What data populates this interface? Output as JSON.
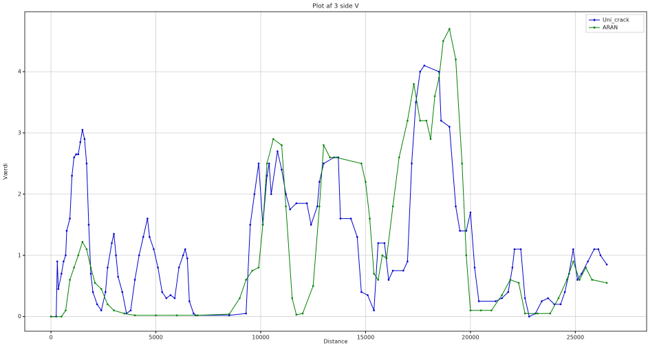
{
  "chart_data": {
    "type": "line",
    "title": "Plot af 3 side V",
    "xlabel": "Distance",
    "ylabel": "Værdi",
    "xlim": [
      -1250,
      28400
    ],
    "ylim": [
      -0.24,
      4.98
    ],
    "xticks": [
      0,
      5000,
      10000,
      15000,
      20000,
      25000
    ],
    "yticks": [
      0,
      1,
      2,
      3,
      4
    ],
    "grid": true,
    "legend": "upper right",
    "series": [
      {
        "name": "Uni_crack",
        "color": "#0000cc",
        "x": [
          0,
          250,
          300,
          350,
          500,
          600,
          700,
          750,
          900,
          1000,
          1100,
          1200,
          1300,
          1400,
          1500,
          1600,
          1700,
          1800,
          1900,
          2000,
          2200,
          2400,
          2600,
          2700,
          2900,
          3000,
          3100,
          3200,
          3400,
          3600,
          3800,
          4000,
          4200,
          4400,
          4600,
          4700,
          4900,
          5100,
          5300,
          5500,
          5700,
          5900,
          6100,
          6300,
          6400,
          6500,
          6600,
          6800,
          6900,
          8500,
          9300,
          9500,
          9700,
          9900,
          10100,
          10300,
          10400,
          10500,
          10800,
          11000,
          11200,
          11400,
          11700,
          12200,
          12400,
          12700,
          12800,
          13000,
          13500,
          13700,
          13800,
          14300,
          14600,
          14800,
          15100,
          15400,
          15600,
          15900,
          16100,
          16300,
          16800,
          17000,
          17200,
          17400,
          17600,
          17800,
          18500,
          18600,
          19000,
          19300,
          19500,
          19800,
          20000,
          20200,
          20400,
          21200,
          21500,
          21800,
          22000,
          22100,
          22400,
          22600,
          22800,
          23100,
          23400,
          23700,
          24000,
          24300,
          24500,
          24700,
          24900,
          25100,
          25300,
          25600,
          25900,
          26100,
          26200,
          26500
        ],
        "values": [
          0,
          0,
          0.9,
          0.45,
          0.7,
          0.9,
          1.0,
          1.4,
          1.6,
          2.3,
          2.6,
          2.65,
          2.65,
          2.85,
          3.05,
          2.9,
          2.5,
          1.5,
          0.7,
          0.4,
          0.2,
          0.1,
          0.4,
          0.8,
          1.2,
          1.35,
          1.0,
          0.65,
          0.4,
          0.05,
          0.1,
          0.6,
          1.0,
          1.3,
          1.6,
          1.3,
          1.1,
          0.8,
          0.4,
          0.3,
          0.35,
          0.3,
          0.8,
          1.0,
          1.1,
          0.95,
          0.25,
          0.05,
          0.02,
          0.02,
          0.05,
          1.5,
          2.0,
          2.5,
          1.5,
          2.3,
          2.5,
          2.0,
          2.7,
          2.4,
          2.0,
          1.75,
          1.85,
          1.85,
          1.5,
          1.8,
          2.2,
          2.5,
          2.6,
          2.6,
          1.6,
          1.6,
          1.3,
          0.4,
          0.35,
          0.1,
          1.2,
          1.2,
          0.6,
          0.75,
          0.75,
          0.9,
          2.5,
          3.5,
          4.0,
          4.1,
          4.0,
          3.2,
          3.1,
          1.8,
          1.4,
          1.4,
          1.7,
          0.8,
          0.25,
          0.25,
          0.3,
          0.4,
          0.8,
          1.1,
          1.1,
          0.3,
          0.0,
          0.05,
          0.25,
          0.3,
          0.2,
          0.2,
          0.4,
          0.7,
          1.1,
          0.6,
          0.7,
          0.9,
          1.1,
          1.1,
          1.0,
          0.85
        ]
      },
      {
        "name": "ARAN",
        "color": "#008000",
        "x": [
          0,
          500,
          700,
          900,
          1100,
          1300,
          1500,
          1700,
          1900,
          2100,
          2400,
          2700,
          3000,
          3500,
          4000,
          5000,
          6000,
          7000,
          8500,
          9000,
          9300,
          9600,
          9900,
          10100,
          10300,
          10600,
          11000,
          11200,
          11500,
          11700,
          12000,
          12500,
          12800,
          13000,
          13300,
          13600,
          14800,
          15000,
          15200,
          15400,
          15600,
          15800,
          16000,
          16300,
          16600,
          17000,
          17300,
          17600,
          17900,
          18100,
          18300,
          18500,
          18700,
          19000,
          19300,
          19600,
          19800,
          20000,
          20500,
          21000,
          21500,
          21900,
          22300,
          22600,
          23200,
          23800,
          24200,
          24600,
          24900,
          25200,
          25500,
          25800,
          26500
        ],
        "values": [
          0,
          0,
          0.1,
          0.6,
          0.8,
          1.0,
          1.22,
          1.1,
          0.8,
          0.55,
          0.45,
          0.2,
          0.1,
          0.05,
          0.02,
          0.02,
          0.02,
          0.02,
          0.04,
          0.3,
          0.6,
          0.75,
          0.8,
          1.5,
          2.5,
          2.9,
          2.8,
          1.8,
          0.3,
          0.03,
          0.05,
          0.5,
          1.8,
          2.8,
          2.6,
          2.6,
          2.5,
          2.2,
          1.6,
          0.7,
          0.6,
          1.0,
          0.95,
          1.8,
          2.6,
          3.2,
          3.8,
          3.2,
          3.2,
          2.9,
          3.6,
          3.9,
          4.5,
          4.7,
          4.2,
          2.5,
          1.0,
          0.1,
          0.1,
          0.1,
          0.35,
          0.6,
          0.55,
          0.05,
          0.05,
          0.05,
          0.3,
          0.6,
          0.9,
          0.6,
          0.8,
          0.6,
          0.55
        ]
      }
    ]
  }
}
